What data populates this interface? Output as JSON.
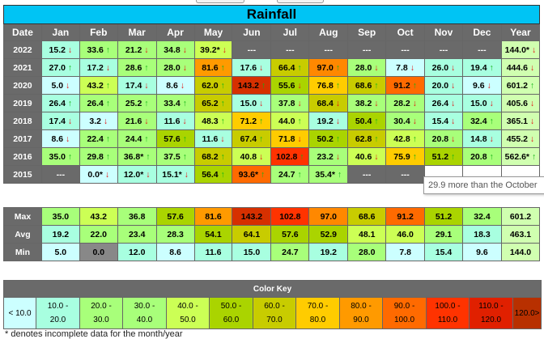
{
  "title": "Rainfall",
  "headers": [
    "Date",
    "Jan",
    "Feb",
    "Mar",
    "Apr",
    "May",
    "Jun",
    "Jul",
    "Aug",
    "Sep",
    "Oct",
    "Nov",
    "Dec",
    "Year"
  ],
  "rows": [
    {
      "year": "2022",
      "cells": [
        {
          "t": "15.2",
          "a": "down",
          "c": "#a8ffe0"
        },
        {
          "t": "33.6",
          "a": "up",
          "c": "#a8ff7a"
        },
        {
          "t": "21.2",
          "a": "down",
          "c": "#a8ff7a"
        },
        {
          "t": "34.8",
          "a": "down",
          "c": "#a8ff7a"
        },
        {
          "t": "39.2*",
          "a": "down",
          "c": "#ccff55"
        },
        {
          "t": "---",
          "a": "",
          "c": "na"
        },
        {
          "t": "---",
          "a": "",
          "c": "na"
        },
        {
          "t": "---",
          "a": "",
          "c": "na"
        },
        {
          "t": "---",
          "a": "",
          "c": "na"
        },
        {
          "t": "---",
          "a": "",
          "c": "na"
        },
        {
          "t": "---",
          "a": "",
          "c": "na"
        },
        {
          "t": "---",
          "a": "",
          "c": "na"
        },
        {
          "t": "144.0*",
          "a": "down",
          "c": "#d0ffb0"
        }
      ]
    },
    {
      "year": "2021",
      "cells": [
        {
          "t": "27.0",
          "a": "up",
          "c": "#a8ffe0"
        },
        {
          "t": "17.2",
          "a": "down",
          "c": "#a8ffe0"
        },
        {
          "t": "28.6",
          "a": "up",
          "c": "#a8ff7a"
        },
        {
          "t": "28.0",
          "a": "down",
          "c": "#a8ff7a"
        },
        {
          "t": "81.6",
          "a": "up",
          "c": "#ff9a00"
        },
        {
          "t": "17.6",
          "a": "down",
          "c": "#a8ffe0"
        },
        {
          "t": "66.4",
          "a": "up",
          "c": "#c8cc00"
        },
        {
          "t": "97.0",
          "a": "up",
          "c": "#ff8800"
        },
        {
          "t": "28.0",
          "a": "down",
          "c": "#a8ff7a"
        },
        {
          "t": "7.8",
          "a": "down",
          "c": "#ccffff"
        },
        {
          "t": "26.0",
          "a": "down",
          "c": "#a8ffe0"
        },
        {
          "t": "19.4",
          "a": "up",
          "c": "#a8ffe0"
        },
        {
          "t": "444.6",
          "a": "down",
          "c": "#d0ffb0"
        }
      ]
    },
    {
      "year": "2020",
      "cells": [
        {
          "t": "5.0",
          "a": "down",
          "c": "#ccffff"
        },
        {
          "t": "43.2",
          "a": "up",
          "c": "#ccff55"
        },
        {
          "t": "17.4",
          "a": "down",
          "c": "#a8ffe0"
        },
        {
          "t": "8.6",
          "a": "down",
          "c": "#ccffff"
        },
        {
          "t": "62.0",
          "a": "up",
          "c": "#c8cc00"
        },
        {
          "t": "143.2",
          "a": "up",
          "c": "#d63000"
        },
        {
          "t": "55.6",
          "a": "down",
          "c": "#aad400"
        },
        {
          "t": "76.8",
          "a": "up",
          "c": "#ffcc00"
        },
        {
          "t": "68.6",
          "a": "up",
          "c": "#c8cc00"
        },
        {
          "t": "91.2",
          "a": "up",
          "c": "#ff6a00"
        },
        {
          "t": "20.0",
          "a": "down",
          "c": "#a8ffe0"
        },
        {
          "t": "9.6",
          "a": "down",
          "c": "#ccffff"
        },
        {
          "t": "601.2",
          "a": "up",
          "c": "#d0ffb0"
        }
      ]
    },
    {
      "year": "2019",
      "cells": [
        {
          "t": "26.4",
          "a": "up",
          "c": "#a8ffe0"
        },
        {
          "t": "26.4",
          "a": "up",
          "c": "#a8ff7a"
        },
        {
          "t": "25.2",
          "a": "up",
          "c": "#a8ff7a"
        },
        {
          "t": "33.4",
          "a": "up",
          "c": "#a8ff7a"
        },
        {
          "t": "65.2",
          "a": "up",
          "c": "#c8cc00"
        },
        {
          "t": "15.0",
          "a": "down",
          "c": "#a8ffe0"
        },
        {
          "t": "37.8",
          "a": "down",
          "c": "#a8ff7a"
        },
        {
          "t": "68.4",
          "a": "down",
          "c": "#c8cc00"
        },
        {
          "t": "38.2",
          "a": "down",
          "c": "#a8ff7a"
        },
        {
          "t": "28.2",
          "a": "down",
          "c": "#a8ff7a"
        },
        {
          "t": "26.4",
          "a": "down",
          "c": "#a8ffe0"
        },
        {
          "t": "15.0",
          "a": "down",
          "c": "#a8ffe0"
        },
        {
          "t": "405.6",
          "a": "down",
          "c": "#d0ffb0"
        }
      ]
    },
    {
      "year": "2018",
      "cells": [
        {
          "t": "17.4",
          "a": "down",
          "c": "#a8ffe0"
        },
        {
          "t": "3.2",
          "a": "down",
          "c": "#ccffff"
        },
        {
          "t": "21.6",
          "a": "down",
          "c": "#a8ff7a"
        },
        {
          "t": "11.6",
          "a": "down",
          "c": "#a8ffe0"
        },
        {
          "t": "48.3",
          "a": "up",
          "c": "#ccff55"
        },
        {
          "t": "71.2",
          "a": "up",
          "c": "#ffcc00"
        },
        {
          "t": "44.0",
          "a": "up",
          "c": "#ccff55"
        },
        {
          "t": "19.2",
          "a": "down",
          "c": "#a8ffe0"
        },
        {
          "t": "50.4",
          "a": "up",
          "c": "#aad400"
        },
        {
          "t": "30.4",
          "a": "down",
          "c": "#a8ff7a"
        },
        {
          "t": "15.4",
          "a": "down",
          "c": "#a8ffe0"
        },
        {
          "t": "32.4",
          "a": "up",
          "c": "#a8ff7a"
        },
        {
          "t": "365.1",
          "a": "down",
          "c": "#d0ffb0"
        }
      ]
    },
    {
      "year": "2017",
      "cells": [
        {
          "t": "8.6",
          "a": "down",
          "c": "#ccffff"
        },
        {
          "t": "22.4",
          "a": "up",
          "c": "#a8ff7a"
        },
        {
          "t": "24.4",
          "a": "up",
          "c": "#a8ff7a"
        },
        {
          "t": "57.6",
          "a": "up",
          "c": "#aad400"
        },
        {
          "t": "11.6",
          "a": "down",
          "c": "#a8ffe0"
        },
        {
          "t": "67.4",
          "a": "up",
          "c": "#c8cc00"
        },
        {
          "t": "71.8",
          "a": "down",
          "c": "#ffcc00"
        },
        {
          "t": "50.2",
          "a": "up",
          "c": "#aad400"
        },
        {
          "t": "62.8",
          "a": "up",
          "c": "#c8cc00"
        },
        {
          "t": "42.8",
          "a": "up",
          "c": "#ccff55"
        },
        {
          "t": "20.8",
          "a": "down",
          "c": "#a8ff7a"
        },
        {
          "t": "14.8",
          "a": "down",
          "c": "#a8ffe0"
        },
        {
          "t": "455.2",
          "a": "down",
          "c": "#d0ffb0"
        }
      ]
    },
    {
      "year": "2016",
      "cells": [
        {
          "t": "35.0",
          "a": "up",
          "c": "#a8ff7a"
        },
        {
          "t": "29.8",
          "a": "up",
          "c": "#a8ff7a"
        },
        {
          "t": "36.8*",
          "a": "up",
          "c": "#a8ff7a"
        },
        {
          "t": "37.5",
          "a": "up",
          "c": "#a8ff7a"
        },
        {
          "t": "68.2",
          "a": "up",
          "c": "#c8cc00"
        },
        {
          "t": "40.8",
          "a": "down",
          "c": "#ccff55"
        },
        {
          "t": "102.8",
          "a": "up",
          "c": "#ff3300"
        },
        {
          "t": "23.2",
          "a": "down",
          "c": "#a8ff7a"
        },
        {
          "t": "40.6",
          "a": "down",
          "c": "#ccff55"
        },
        {
          "t": "75.9",
          "a": "up",
          "c": "#ffcc00"
        },
        {
          "t": "51.2",
          "a": "up",
          "c": "#aad400"
        },
        {
          "t": "20.8",
          "a": "up",
          "c": "#a8ff7a"
        },
        {
          "t": "562.6*",
          "a": "up",
          "c": "#d0ffb0"
        }
      ]
    },
    {
      "year": "2015",
      "cells": [
        {
          "t": "---",
          "a": "",
          "c": "na"
        },
        {
          "t": "0.0*",
          "a": "down",
          "c": "#ccffff"
        },
        {
          "t": "12.0*",
          "a": "down",
          "c": "#a8ffe0"
        },
        {
          "t": "15.1*",
          "a": "down",
          "c": "#a8ffe0"
        },
        {
          "t": "56.4",
          "a": "up",
          "c": "#aad400"
        },
        {
          "t": "93.6*",
          "a": "up",
          "c": "#ff6a00"
        },
        {
          "t": "24.7",
          "a": "up",
          "c": "#a8ff7a"
        },
        {
          "t": "35.4*",
          "a": "up",
          "c": "#a8ff7a"
        },
        {
          "t": "---",
          "a": "",
          "c": "na"
        },
        {
          "t": "---",
          "a": "",
          "c": "na"
        },
        {
          "t": "",
          "a": "",
          "c": "#ffffff"
        },
        {
          "t": "",
          "a": "",
          "c": "#ffffff"
        },
        {
          "t": "",
          "a": "",
          "c": "#ffffff"
        }
      ]
    }
  ],
  "stats": [
    {
      "label": "Max",
      "cells": [
        {
          "t": "35.0",
          "c": "#a8ff7a"
        },
        {
          "t": "43.2",
          "c": "#ccff55"
        },
        {
          "t": "36.8",
          "c": "#a8ff7a"
        },
        {
          "t": "57.6",
          "c": "#aad400"
        },
        {
          "t": "81.6",
          "c": "#ff9a00"
        },
        {
          "t": "143.2",
          "c": "#d63000"
        },
        {
          "t": "102.8",
          "c": "#ff3300"
        },
        {
          "t": "97.0",
          "c": "#ff8800"
        },
        {
          "t": "68.6",
          "c": "#c8cc00"
        },
        {
          "t": "91.2",
          "c": "#ff6a00"
        },
        {
          "t": "51.2",
          "c": "#aad400"
        },
        {
          "t": "32.4",
          "c": "#a8ff7a"
        },
        {
          "t": "601.2",
          "c": "#d0ffb0"
        }
      ]
    },
    {
      "label": "Avg",
      "cells": [
        {
          "t": "19.2",
          "c": "#a8ffe0"
        },
        {
          "t": "22.0",
          "c": "#a8ff7a"
        },
        {
          "t": "23.4",
          "c": "#a8ff7a"
        },
        {
          "t": "28.3",
          "c": "#a8ff7a"
        },
        {
          "t": "54.1",
          "c": "#aad400"
        },
        {
          "t": "64.1",
          "c": "#c8cc00"
        },
        {
          "t": "57.6",
          "c": "#aad400"
        },
        {
          "t": "52.9",
          "c": "#aad400"
        },
        {
          "t": "48.1",
          "c": "#ccff55"
        },
        {
          "t": "46.0",
          "c": "#ccff55"
        },
        {
          "t": "29.1",
          "c": "#a8ff7a"
        },
        {
          "t": "18.3",
          "c": "#a8ffe0"
        },
        {
          "t": "463.1",
          "c": "#d0ffb0"
        }
      ]
    },
    {
      "label": "Min",
      "cells": [
        {
          "t": "5.0",
          "c": "#ccffff"
        },
        {
          "t": "0.0",
          "c": "#888888"
        },
        {
          "t": "12.0",
          "c": "#a8ffe0"
        },
        {
          "t": "8.6",
          "c": "#ccffff"
        },
        {
          "t": "11.6",
          "c": "#a8ffe0"
        },
        {
          "t": "15.0",
          "c": "#a8ffe0"
        },
        {
          "t": "24.7",
          "c": "#a8ff7a"
        },
        {
          "t": "19.2",
          "c": "#a8ffe0"
        },
        {
          "t": "28.0",
          "c": "#a8ff7a"
        },
        {
          "t": "7.8",
          "c": "#ccffff"
        },
        {
          "t": "15.4",
          "c": "#a8ffe0"
        },
        {
          "t": "9.6",
          "c": "#ccffff"
        },
        {
          "t": "144.0",
          "c": "#d0ffb0"
        }
      ]
    }
  ],
  "color_key": {
    "title": "Color Key",
    "items": [
      {
        "l1": "< 10.0",
        "l2": "",
        "c": "#ccffff"
      },
      {
        "l1": "10.0 -",
        "l2": "20.0",
        "c": "#a8ffe0"
      },
      {
        "l1": "20.0 -",
        "l2": "30.0",
        "c": "#a8ff7a"
      },
      {
        "l1": "30.0 -",
        "l2": "40.0",
        "c": "#a8ff7a"
      },
      {
        "l1": "40.0 -",
        "l2": "50.0",
        "c": "#ccff55"
      },
      {
        "l1": "50.0 -",
        "l2": "60.0",
        "c": "#aad400"
      },
      {
        "l1": "60.0 -",
        "l2": "70.0",
        "c": "#c8cc00"
      },
      {
        "l1": "70.0 -",
        "l2": "80.0",
        "c": "#ffcc00"
      },
      {
        "l1": "80.0 -",
        "l2": "90.0",
        "c": "#ff9a00"
      },
      {
        "l1": "90.0 -",
        "l2": "100.0",
        "c": "#ff6a00"
      },
      {
        "l1": "100.0 -",
        "l2": "110.0",
        "c": "#ff3300"
      },
      {
        "l1": "110.0 -",
        "l2": "120.0",
        "c": "#e02000"
      },
      {
        "l1": "120.0>",
        "l2": "",
        "c": "#b83000"
      }
    ]
  },
  "tooltip": "29.9 more than the October",
  "note": "* denotes incomplete data for the month/year"
}
